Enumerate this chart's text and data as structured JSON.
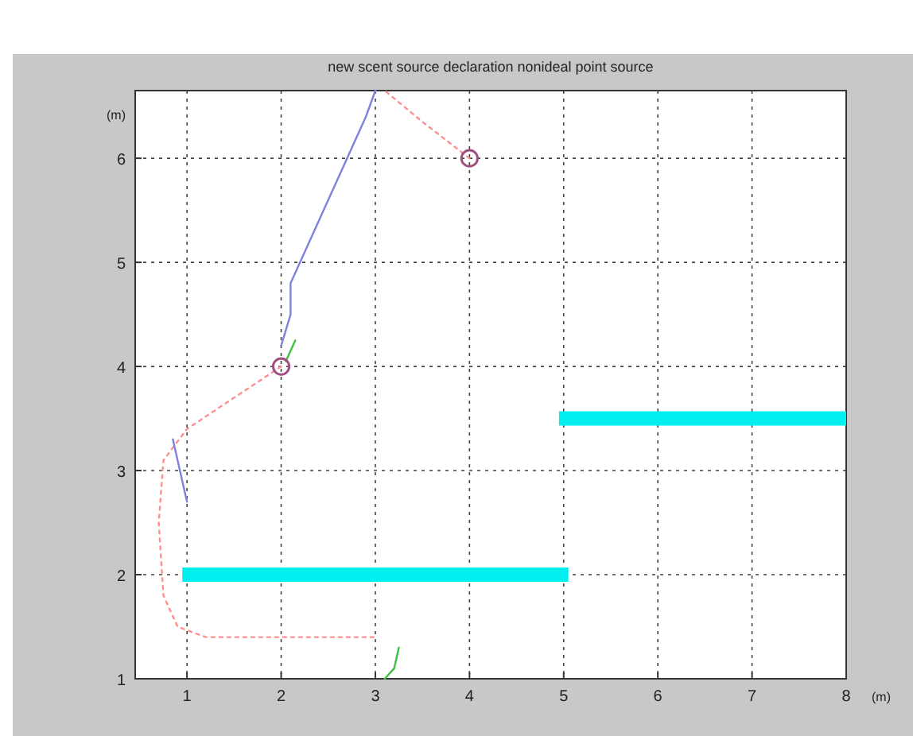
{
  "chart_data": {
    "type": "line",
    "title": "new scent source declaration nonideal point source",
    "xlabel": "(m)",
    "ylabel": "(m)",
    "xlim": [
      0.45,
      8
    ],
    "ylim": [
      1,
      6.65
    ],
    "xticks": [
      1,
      2,
      3,
      4,
      5,
      6,
      7,
      8
    ],
    "yticks": [
      1,
      2,
      3,
      4,
      5,
      6
    ],
    "grid": true,
    "marker": "none",
    "series": [
      {
        "color": "#ff9090",
        "line_style": "dotted",
        "x": [
          4,
          3.5,
          3.1
        ],
        "values": [
          6,
          6.35,
          6.65
        ]
      },
      {
        "color": "#ff9090",
        "line_style": "dotted",
        "x": [
          2,
          1.5,
          1.0,
          0.75,
          0.7,
          0.75,
          0.9,
          1.2,
          2,
          3
        ],
        "values": [
          4,
          3.7,
          3.4,
          3.1,
          2.5,
          1.8,
          1.5,
          1.4,
          1.4,
          1.4
        ]
      },
      {
        "color": "#8080e0",
        "line_style": "solid",
        "x": [
          2.0,
          2.1,
          2.1,
          2.3,
          2.5,
          2.7,
          2.9,
          3.0
        ],
        "values": [
          4.2,
          4.5,
          4.8,
          5.2,
          5.6,
          6.0,
          6.4,
          6.65
        ]
      },
      {
        "color": "#8080e0",
        "line_style": "solid",
        "x": [
          0.85,
          0.9,
          0.95,
          1.0
        ],
        "values": [
          3.3,
          3.1,
          2.9,
          2.7
        ]
      },
      {
        "color": "#40c040",
        "line_style": "solid",
        "x": [
          2.05,
          2.15
        ],
        "values": [
          4.05,
          4.25
        ]
      },
      {
        "color": "#40c040",
        "line_style": "solid",
        "x": [
          3.1,
          3.2,
          3.25
        ],
        "values": [
          1.0,
          1.1,
          1.3
        ]
      },
      {
        "color": "#00f0f0",
        "line_style": "solid",
        "x": [
          0.95,
          5.05
        ],
        "values": [
          2,
          2
        ]
      },
      {
        "color": "#00f0f0",
        "line_style": "solid",
        "x": [
          4.95,
          8
        ],
        "values": [
          3.5,
          3.5
        ]
      },
      {
        "type": "scatter",
        "color": "#a05080",
        "marker": "circle",
        "x": [
          2,
          4
        ],
        "values": [
          4,
          6
        ]
      }
    ]
  }
}
